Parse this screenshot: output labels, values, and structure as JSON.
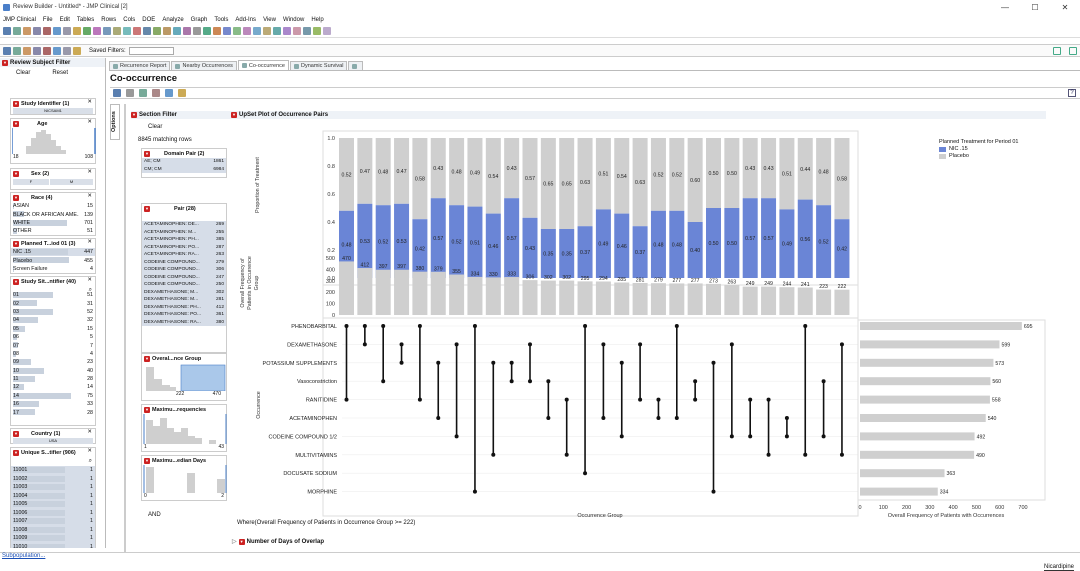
{
  "window": {
    "title": "Review Builder - Untitled* - JMP Clinical [2]",
    "min": "—",
    "max": "☐",
    "close": "✕"
  },
  "menu": [
    "JMP Clinical",
    "File",
    "Edit",
    "Tables",
    "Rows",
    "Cols",
    "DOE",
    "Analyze",
    "Graph",
    "Tools",
    "Add-Ins",
    "View",
    "Window",
    "Help"
  ],
  "toolbar": {
    "saved_filters": "Saved Filters:"
  },
  "review_filter": {
    "title": "Review Subject Filter",
    "clear": "Clear",
    "reset": "Reset",
    "study_id": {
      "title": "Study Identifier (1)",
      "selected": "NICSAM1"
    },
    "age": {
      "title": "Age",
      "min": "18",
      "max": "108"
    },
    "sex": {
      "title": "Sex (2)",
      "f": "F",
      "m": "M"
    },
    "race": {
      "title": "Race (4)",
      "rows": [
        {
          "l": "ASIAN",
          "c": "15"
        },
        {
          "l": "BLACK OR AFRICAN AME...",
          "c": "139"
        },
        {
          "l": "WHITE",
          "c": "701"
        },
        {
          "l": "OTHER",
          "c": "51"
        }
      ]
    },
    "planned": {
      "title": "Planned T...iod 01 (3)",
      "rows": [
        {
          "l": "NIC .15",
          "c": "447"
        },
        {
          "l": "Placebo",
          "c": "455"
        },
        {
          "l": "Screen Failure",
          "c": "4"
        }
      ]
    },
    "site": {
      "title": "Study Sit...ntifier (40)",
      "rows": [
        {
          "l": "01",
          "c": "51"
        },
        {
          "l": "02",
          "c": "31"
        },
        {
          "l": "03",
          "c": "52"
        },
        {
          "l": "04",
          "c": "32"
        },
        {
          "l": "05",
          "c": "15"
        },
        {
          "l": "06",
          "c": "5"
        },
        {
          "l": "07",
          "c": "7"
        },
        {
          "l": "08",
          "c": "4"
        },
        {
          "l": "09",
          "c": "23"
        },
        {
          "l": "10",
          "c": "40"
        },
        {
          "l": "11",
          "c": "28"
        },
        {
          "l": "12",
          "c": "14"
        },
        {
          "l": "14",
          "c": "75"
        },
        {
          "l": "16",
          "c": "33"
        },
        {
          "l": "17",
          "c": "28"
        }
      ]
    },
    "country": {
      "title": "Country (1)",
      "selected": "USA"
    },
    "unique": {
      "title": "Unique S...tifier (906)",
      "rows": [
        {
          "l": "11001",
          "c": "1"
        },
        {
          "l": "11002",
          "c": "1"
        },
        {
          "l": "11003",
          "c": "1"
        },
        {
          "l": "11004",
          "c": "1"
        },
        {
          "l": "11005",
          "c": "1"
        },
        {
          "l": "11006",
          "c": "1"
        },
        {
          "l": "11007",
          "c": "1"
        },
        {
          "l": "11008",
          "c": "1"
        },
        {
          "l": "11009",
          "c": "1"
        },
        {
          "l": "11010",
          "c": "1"
        }
      ]
    }
  },
  "tabs": [
    "Recurrence Report",
    "Nearby Occurrences",
    "Co-occurrence",
    "Dynamic Survival"
  ],
  "report": {
    "title": "Co-occurrence",
    "options": "Options",
    "help": "?"
  },
  "section_filter": {
    "title": "Section Filter",
    "clear": "Clear",
    "matching": "8845 matching rows",
    "domain": {
      "title": "Domain Pair (2)",
      "rows": [
        {
          "l": "AE; CM",
          "c": "1861"
        },
        {
          "l": "CM; CM",
          "c": "6984"
        }
      ]
    },
    "pair": {
      "title": "Pair (28)",
      "rows": [
        {
          "l": "ACETAMINOPHEN: DE...",
          "c": "269"
        },
        {
          "l": "ACETAMINOPHEN: M...",
          "c": "255"
        },
        {
          "l": "ACETAMINOPHEN: PH...",
          "c": "385"
        },
        {
          "l": "ACETAMINOPHEN: PO...",
          "c": "287"
        },
        {
          "l": "ACETAMINOPHEN: RA...",
          "c": "263"
        },
        {
          "l": "CODEINE COMPOUND...",
          "c": "279"
        },
        {
          "l": "CODEINE COMPOUND...",
          "c": "306"
        },
        {
          "l": "CODEINE COMPOUND...",
          "c": "247"
        },
        {
          "l": "CODEINE COMPOUND...",
          "c": "250"
        },
        {
          "l": "DEXAMETHASONE; M...",
          "c": "302"
        },
        {
          "l": "DEXAMETHASONE: M...",
          "c": "281"
        },
        {
          "l": "DEXAMETHASONE: PH...",
          "c": "412"
        },
        {
          "l": "DEXAMETHASONE: PO...",
          "c": "361"
        },
        {
          "l": "DEXAMETHASONE: RA...",
          "c": "380"
        }
      ]
    },
    "overall": {
      "title": "Overal...nce Group",
      "min": "222",
      "max": "470"
    },
    "maxfreq": {
      "title": "Maximu...requencies",
      "min": "1",
      "max": "43"
    },
    "maxdays": {
      "title": "Maximu...edian Days",
      "min": "0",
      "max": "2"
    },
    "and": "AND"
  },
  "upset": {
    "title": "UpSet Plot of Occurrence Pairs",
    "where": "Where(Overall Frequency of Patients in Occurrence Group >= 222)",
    "overlap_title": "Number of Days of Overlap"
  },
  "chart_data": {
    "type": "bar",
    "title": "UpSet Plot of Occurrence Pairs",
    "prop_ylabel": "Proportion of Treatment",
    "freq_ylabel": "Overall Frequency of Patients in Occurrence Group",
    "matrix_ylabel": "Occurrence",
    "xlabel": "Occurrence Group",
    "side_xlabel": "Overall Frequency of Patients with Occurrences",
    "legend_title": "Planned Treatment for Period 01",
    "series": [
      {
        "name": "NIC .15",
        "color": "#6a85d6"
      },
      {
        "name": "Placebo",
        "color": "#cfcfcf"
      }
    ],
    "prop_ticks": [
      "0.0",
      "0.2",
      "0.4",
      "0.6",
      "0.8",
      "1.0"
    ],
    "freq_ticks": [
      "0",
      "100",
      "200",
      "300",
      "400",
      "500"
    ],
    "side_ticks": [
      "0",
      "100",
      "200",
      "300",
      "400",
      "500",
      "600",
      "700"
    ],
    "nic": [
      0.48,
      0.53,
      0.52,
      0.53,
      0.42,
      0.57,
      0.52,
      0.51,
      0.46,
      0.57,
      0.43,
      0.35,
      0.35,
      0.37,
      0.49,
      0.46,
      0.37,
      0.48,
      0.48,
      0.4,
      0.5,
      0.5,
      0.57,
      0.57,
      0.49,
      0.56,
      0.52,
      0.42
    ],
    "placebo": [
      0.52,
      0.47,
      0.48,
      0.47,
      0.58,
      0.43,
      0.48,
      0.49,
      0.54,
      0.43,
      0.57,
      0.65,
      0.65,
      0.63,
      0.51,
      0.54,
      0.63,
      0.52,
      0.52,
      0.6,
      0.5,
      0.5,
      0.43,
      0.43,
      0.51,
      0.44,
      0.48,
      0.58
    ],
    "freq": [
      470,
      412,
      397,
      397,
      380,
      379,
      355,
      334,
      330,
      333,
      306,
      302,
      302,
      295,
      294,
      285,
      281,
      279,
      277,
      277,
      273,
      263,
      249,
      249,
      244,
      241,
      223,
      222
    ],
    "occurrences": [
      "PHENOBARBITAL",
      "DEXAMETHASONE",
      "POTASSIUM SUPPLEMENTS",
      "Vasoconstriction",
      "RANITIDINE",
      "ACETAMINOPHEN",
      "CODEINE COMPOUND 1/2",
      "MULTIVITAMINS",
      "DOCUSATE SODIUM",
      "MORPHINE"
    ],
    "occ_freq": [
      695,
      599,
      573,
      560,
      558,
      540,
      492,
      490,
      363,
      334
    ],
    "pairs": [
      [
        0,
        4
      ],
      [
        0,
        1
      ],
      [
        0,
        3
      ],
      [
        1,
        2
      ],
      [
        0,
        4
      ],
      [
        2,
        5
      ],
      [
        1,
        6
      ],
      [
        0,
        9
      ],
      [
        2,
        7
      ],
      [
        2,
        3
      ],
      [
        1,
        3
      ],
      [
        3,
        5
      ],
      [
        4,
        7
      ],
      [
        0,
        8
      ],
      [
        1,
        5
      ],
      [
        2,
        6
      ],
      [
        1,
        4
      ],
      [
        4,
        5
      ],
      [
        0,
        5
      ],
      [
        3,
        4
      ],
      [
        2,
        9
      ],
      [
        1,
        6
      ],
      [
        4,
        6
      ],
      [
        4,
        7
      ],
      [
        5,
        6
      ],
      [
        0,
        7
      ],
      [
        3,
        6
      ],
      [
        1,
        7
      ]
    ]
  }
}
